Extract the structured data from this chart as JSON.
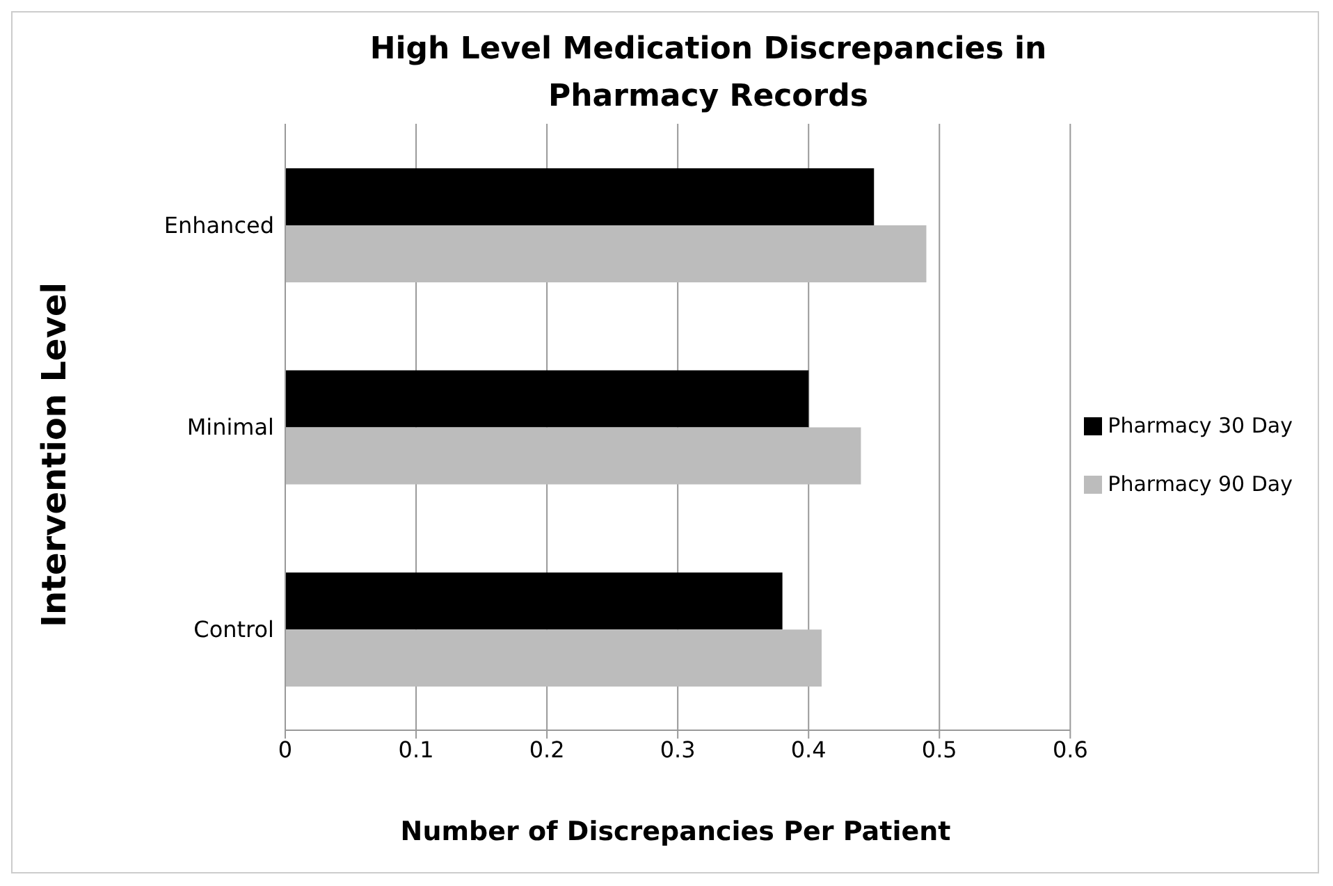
{
  "chart_data": {
    "type": "bar",
    "orientation": "horizontal",
    "title": "High Level Medication Discrepancies in Pharmacy Records",
    "xlabel": "Number of Discrepancies Per Patient",
    "ylabel": "Intervention Level",
    "categories": [
      "Enhanced",
      "Minimal",
      "Control"
    ],
    "series": [
      {
        "name": "Pharmacy 30 Day",
        "color": "#000000",
        "values": [
          0.45,
          0.4,
          0.38
        ]
      },
      {
        "name": "Pharmacy 90 Day",
        "color": "#bcbcbc",
        "values": [
          0.49,
          0.44,
          0.41
        ]
      }
    ],
    "xlim": [
      0,
      0.6
    ],
    "xticks": [
      0,
      0.1,
      0.2,
      0.3,
      0.4,
      0.5,
      0.6
    ],
    "grid": "x",
    "legend": "right"
  }
}
